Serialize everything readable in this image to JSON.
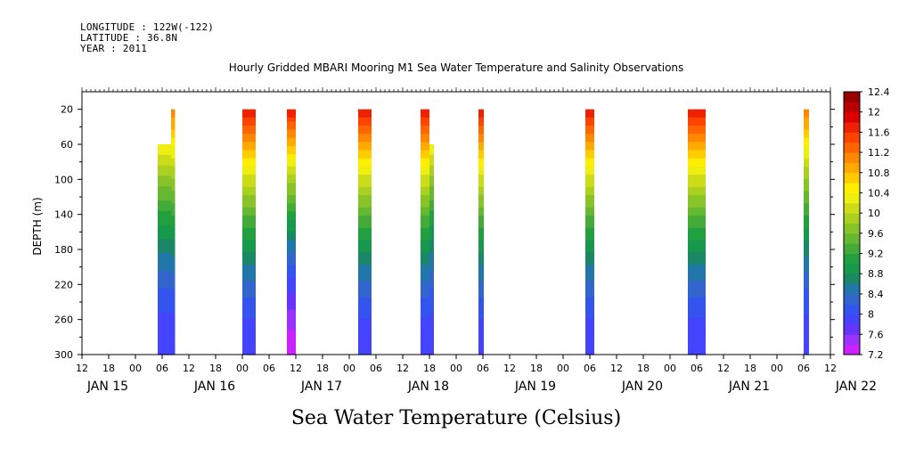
{
  "header": {
    "longitude": "LONGITUDE : 122W(-122)",
    "latitude": "LATITUDE : 36.8N",
    "year": "YEAR : 2011"
  },
  "chart_data": {
    "type": "heatmap",
    "title": "Hourly Gridded MBARI Mooring M1 Sea Water Temperature and Salinity Observations",
    "xlabel": "Sea Water Temperature (Celsius)",
    "ylabel": "DEPTH (m)",
    "ylim": [
      300,
      0
    ],
    "y_reversed": true,
    "yticks": [
      20,
      60,
      100,
      140,
      180,
      220,
      260,
      300
    ],
    "x_hour_ticks": [
      "12",
      "18",
      "00",
      "06",
      "12",
      "18",
      "00",
      "06",
      "12",
      "18",
      "00",
      "06",
      "12",
      "18",
      "00",
      "06",
      "12",
      "18",
      "00",
      "06",
      "12",
      "18",
      "00",
      "06",
      "12",
      "18",
      "00",
      "06",
      "12"
    ],
    "day_labels": [
      "JAN 15",
      "JAN 16",
      "JAN 17",
      "JAN 18",
      "JAN 19",
      "JAN 20",
      "JAN 21",
      "JAN 22"
    ],
    "x_range_hours": [
      0,
      168
    ],
    "colorbar": {
      "levels": [
        7.2,
        7.4,
        7.6,
        7.8,
        8.0,
        8.2,
        8.4,
        8.6,
        8.8,
        9.0,
        9.2,
        9.4,
        9.6,
        9.8,
        10.0,
        10.2,
        10.4,
        10.6,
        10.8,
        11.0,
        11.2,
        11.4,
        11.6,
        11.8,
        12.0,
        12.2,
        12.4
      ],
      "labels": [
        "12.4",
        "12",
        "11.6",
        "11.2",
        "10.8",
        "10.4",
        "10",
        "9.6",
        "9.2",
        "8.8",
        "8.4",
        "8",
        "7.6",
        "7.2"
      ],
      "colors": [
        "#cc22ff",
        "#9933ff",
        "#6633ff",
        "#4444ff",
        "#3355ee",
        "#3366cc",
        "#2277aa",
        "#1a8866",
        "#16994c",
        "#22a040",
        "#44ab38",
        "#66b830",
        "#88c428",
        "#aad020",
        "#ccdc18",
        "#eeee10",
        "#ffee00",
        "#ffcc00",
        "#ffaa00",
        "#ff8800",
        "#ff6600",
        "#ff4400",
        "#ee2200",
        "#dd0000",
        "#bb0000",
        "#990000"
      ]
    },
    "series": [
      {
        "start_hour": 17.0,
        "end_hour": 20.0,
        "top_depth": 60,
        "bottom_depth": 300,
        "surface_temp": 10.4,
        "bottom_temp": 7.8
      },
      {
        "start_hour": 20.0,
        "end_hour": 20.9,
        "top_depth": 20,
        "bottom_depth": 300,
        "surface_temp": 11.2,
        "bottom_temp": 7.8
      },
      {
        "start_hour": 36.0,
        "end_hour": 39.0,
        "top_depth": 20,
        "bottom_depth": 300,
        "surface_temp": 11.8,
        "bottom_temp": 7.8
      },
      {
        "start_hour": 46.0,
        "end_hour": 48.0,
        "top_depth": 20,
        "bottom_depth": 300,
        "surface_temp": 11.8,
        "bottom_temp": 7.3
      },
      {
        "start_hour": 62.0,
        "end_hour": 65.0,
        "top_depth": 20,
        "bottom_depth": 300,
        "surface_temp": 11.8,
        "bottom_temp": 7.8
      },
      {
        "start_hour": 76.0,
        "end_hour": 78.0,
        "top_depth": 20,
        "bottom_depth": 300,
        "surface_temp": 11.8,
        "bottom_temp": 7.8
      },
      {
        "start_hour": 78.0,
        "end_hour": 79.0,
        "top_depth": 60,
        "bottom_depth": 300,
        "surface_temp": 10.4,
        "bottom_temp": 7.8
      },
      {
        "start_hour": 89.0,
        "end_hour": 90.2,
        "top_depth": 20,
        "bottom_depth": 300,
        "surface_temp": 11.8,
        "bottom_temp": 7.8
      },
      {
        "start_hour": 113.0,
        "end_hour": 115.0,
        "top_depth": 20,
        "bottom_depth": 300,
        "surface_temp": 11.8,
        "bottom_temp": 7.8
      },
      {
        "start_hour": 136.0,
        "end_hour": 140.0,
        "top_depth": 20,
        "bottom_depth": 300,
        "surface_temp": 11.8,
        "bottom_temp": 7.8
      },
      {
        "start_hour": 162.0,
        "end_hour": 163.2,
        "top_depth": 20,
        "bottom_depth": 300,
        "surface_temp": 11.2,
        "bottom_temp": 7.8
      }
    ]
  }
}
